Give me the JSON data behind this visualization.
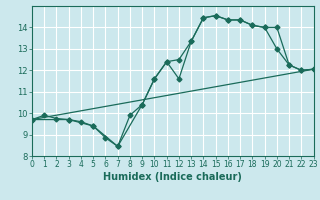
{
  "title": "",
  "xlabel": "Humidex (Indice chaleur)",
  "background_color": "#cce8ed",
  "grid_color": "#b0d8de",
  "line_color": "#1a6b5a",
  "series1_x": [
    0,
    1,
    2,
    3,
    4,
    5,
    6,
    7,
    8,
    9,
    10,
    11,
    12,
    13,
    14,
    15,
    16,
    17,
    18,
    19,
    20,
    21,
    22,
    23
  ],
  "series1_y": [
    9.7,
    9.9,
    9.75,
    9.7,
    9.6,
    9.4,
    8.85,
    8.45,
    9.9,
    10.4,
    11.6,
    12.4,
    12.5,
    13.35,
    14.45,
    14.55,
    14.35,
    14.35,
    14.1,
    14.0,
    13.0,
    12.25,
    12.0,
    12.05
  ],
  "series2_x": [
    0,
    3,
    5,
    7,
    9,
    10,
    11,
    12,
    13,
    14,
    15,
    16,
    17,
    18,
    19,
    20,
    21,
    22,
    23
  ],
  "series2_y": [
    9.7,
    9.7,
    9.4,
    8.45,
    10.4,
    11.6,
    12.4,
    11.6,
    13.35,
    14.45,
    14.55,
    14.35,
    14.35,
    14.1,
    14.0,
    14.0,
    12.25,
    12.0,
    12.05
  ],
  "series3_x": [
    0,
    23
  ],
  "series3_y": [
    9.7,
    12.05
  ],
  "ylim": [
    8,
    15
  ],
  "xlim": [
    0,
    23
  ],
  "yticks": [
    8,
    9,
    10,
    11,
    12,
    13,
    14
  ],
  "xticks": [
    0,
    1,
    2,
    3,
    4,
    5,
    6,
    7,
    8,
    9,
    10,
    11,
    12,
    13,
    14,
    15,
    16,
    17,
    18,
    19,
    20,
    21,
    22,
    23
  ],
  "markersize": 2.5,
  "linewidth": 0.9
}
